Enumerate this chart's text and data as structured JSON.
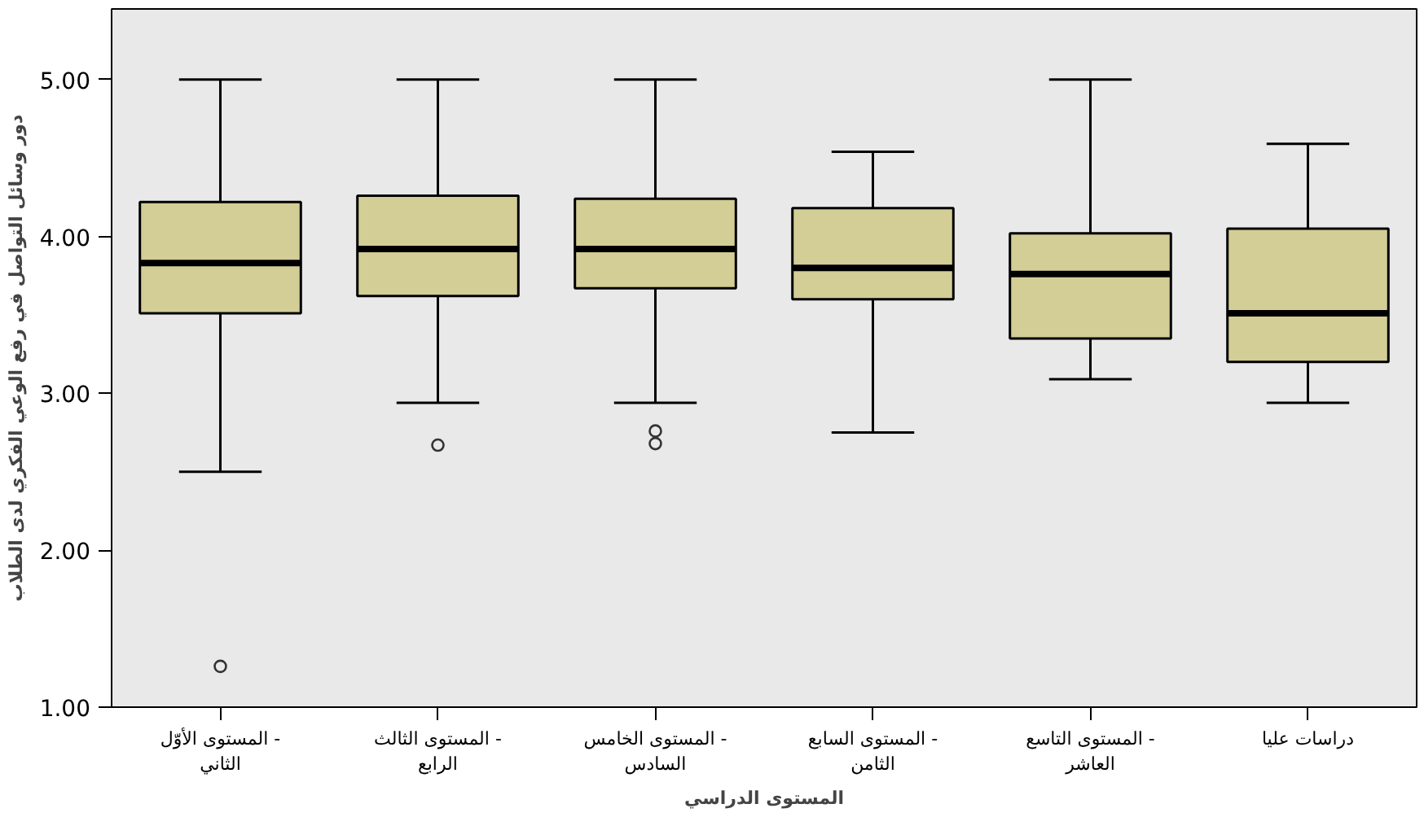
{
  "chart_data": {
    "type": "box",
    "xlabel": "المستوى الدراسي",
    "ylabel": "دور وسائل التواصل في رفع الوعي الفكري لدى الطلاب",
    "categories": [
      "المستوى الأوّل -\nالثاني",
      "المستوى الثالث -\nالرابع",
      "المستوى الخامس -\nالسادس",
      "المستوى السابع -\nالثامن",
      "المستوى التاسع -\nالعاشر",
      "دراسات عليا"
    ],
    "color": "#d3cd96",
    "boxes": [
      {
        "low": 2.5,
        "q1": 3.51,
        "median": 3.83,
        "q3": 4.22,
        "high": 5.0,
        "outliers": [
          1.26
        ]
      },
      {
        "low": 2.94,
        "q1": 3.62,
        "median": 3.92,
        "q3": 4.26,
        "high": 5.0,
        "outliers": [
          2.67
        ]
      },
      {
        "low": 2.94,
        "q1": 3.67,
        "median": 3.92,
        "q3": 4.24,
        "high": 5.0,
        "outliers": [
          2.76,
          2.68
        ]
      },
      {
        "low": 2.75,
        "q1": 3.6,
        "median": 3.8,
        "q3": 4.18,
        "high": 4.54
      },
      {
        "low": 3.09,
        "q1": 3.35,
        "median": 3.76,
        "q3": 4.02,
        "high": 5.0
      },
      {
        "low": 2.94,
        "q1": 3.2,
        "median": 3.51,
        "q3": 4.05,
        "high": 4.59
      }
    ],
    "ylim": [
      1,
      5.45
    ],
    "yticks": [
      {
        "value": 1,
        "label": "1.00"
      },
      {
        "value": 2,
        "label": "2.00"
      },
      {
        "value": 3,
        "label": "3.00"
      },
      {
        "value": 4,
        "label": "4.00"
      },
      {
        "value": 5,
        "label": "5.00"
      }
    ],
    "grid": false
  }
}
